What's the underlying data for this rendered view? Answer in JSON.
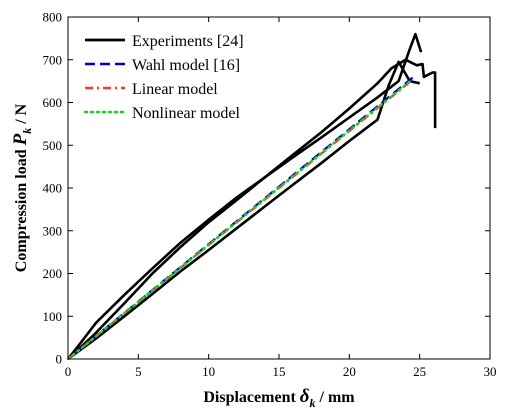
{
  "chart_data": {
    "type": "line",
    "xlabel": {
      "main": "Displacement ",
      "symbol": "δ",
      "sub": "k",
      "unit": " / mm"
    },
    "ylabel": {
      "main": "Compression load ",
      "symbol": "P",
      "sub": "k",
      "unit": " / N"
    },
    "xlim": [
      0,
      30
    ],
    "ylim": [
      0,
      800
    ],
    "xticks": [
      0,
      5,
      10,
      15,
      20,
      25,
      30
    ],
    "yticks": [
      0,
      100,
      200,
      300,
      400,
      500,
      600,
      700,
      800
    ],
    "grid": false,
    "legend_position": "top-left",
    "series": [
      {
        "name": "Experiments [24]",
        "color": "#000000",
        "dash": "solid",
        "segments": [
          [
            [
              0,
              0
            ],
            [
              1,
              42
            ],
            [
              2,
              85
            ],
            [
              4,
              150
            ],
            [
              6,
              212
            ],
            [
              8,
              272
            ],
            [
              10,
              326
            ],
            [
              12,
              378
            ],
            [
              14,
              425
            ],
            [
              16,
              472
            ],
            [
              18,
              518
            ],
            [
              20,
              565
            ],
            [
              22,
              612
            ],
            [
              23.5,
              650
            ],
            [
              24.3,
              725
            ],
            [
              24.7,
              760
            ],
            [
              25.1,
              718
            ]
          ],
          [
            [
              0,
              0
            ],
            [
              1.8,
              55
            ],
            [
              4,
              130
            ],
            [
              6,
              200
            ],
            [
              8,
              262
            ],
            [
              10,
              320
            ],
            [
              12,
              372
            ],
            [
              14,
              425
            ],
            [
              16,
              478
            ],
            [
              18,
              530
            ],
            [
              20,
              586
            ],
            [
              22,
              645
            ],
            [
              23,
              680
            ],
            [
              24,
              700
            ],
            [
              24.8,
              687
            ],
            [
              25.2,
              690
            ],
            [
              25.3,
              660
            ],
            [
              25.9,
              670
            ],
            [
              26.1,
              670
            ],
            [
              26.1,
              540
            ]
          ],
          [
            [
              0,
              0
            ],
            [
              2,
              48
            ],
            [
              4,
              100
            ],
            [
              6,
              152
            ],
            [
              8,
              205
            ],
            [
              10,
              255
            ],
            [
              12,
              306
            ],
            [
              14,
              357
            ],
            [
              16,
              408
            ],
            [
              18,
              458
            ],
            [
              20,
              510
            ],
            [
              21,
              535
            ],
            [
              22,
              560
            ],
            [
              22.8,
              640
            ],
            [
              23.5,
              695
            ],
            [
              24.3,
              650
            ],
            [
              25,
              645
            ]
          ]
        ]
      },
      {
        "name": "Wahl model [16]",
        "color": "#0000cc",
        "dash": "dash",
        "segments": [
          [
            [
              0,
              0
            ],
            [
              24.5,
              658
            ]
          ]
        ]
      },
      {
        "name": "Linear model",
        "color": "#ff3333",
        "dash": "dashdot",
        "segments": [
          [
            [
              0,
              0
            ],
            [
              24.3,
              648
            ]
          ]
        ]
      },
      {
        "name": "Nonlinear model",
        "color": "#22cc22",
        "dash": "dot",
        "segments": [
          [
            [
              0,
              0
            ],
            [
              24.4,
              652
            ]
          ]
        ]
      }
    ]
  }
}
